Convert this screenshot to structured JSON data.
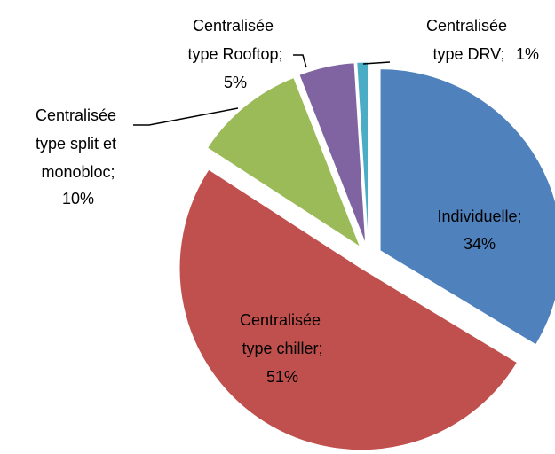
{
  "chart_data": {
    "type": "pie",
    "categories": [
      "Individuelle;",
      "Centralisée type chiller;",
      "Centralisée type split et monobloc;",
      "Centralisée type Rooftop;",
      "Centralisée type DRV;"
    ],
    "values": [
      34,
      51,
      10,
      5,
      1
    ],
    "value_labels": [
      "34%",
      "51%",
      "10%",
      "5%",
      "1%"
    ],
    "colors": [
      "#4F81BD",
      "#C0504D",
      "#9BBB59",
      "#8064A2",
      "#4BACC6"
    ]
  }
}
